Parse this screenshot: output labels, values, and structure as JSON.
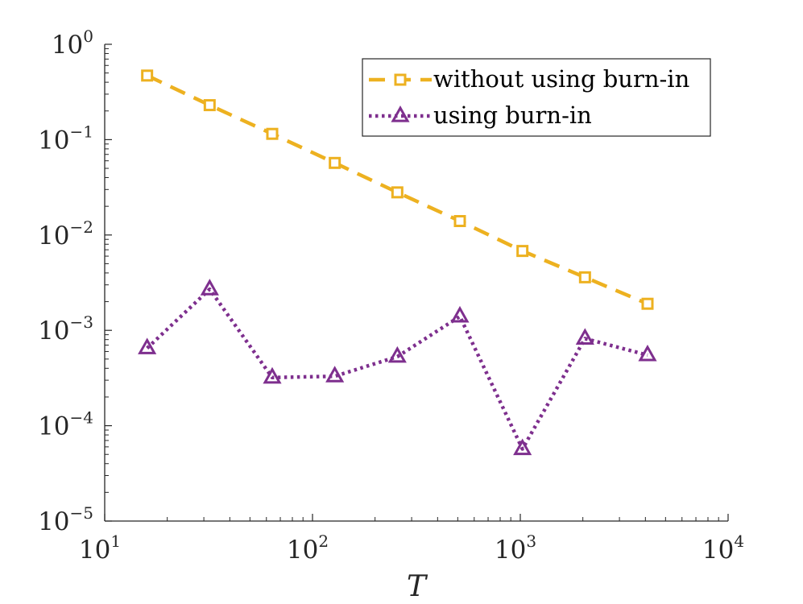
{
  "chart_data": {
    "type": "line",
    "xscale": "log",
    "yscale": "log",
    "xlim": [
      10,
      10000
    ],
    "ylim": [
      1e-05,
      1
    ],
    "xlabel": "T",
    "ylabel": "",
    "x_ticks": [
      {
        "base": "10",
        "exp": "1",
        "value": 10
      },
      {
        "base": "10",
        "exp": "2",
        "value": 100
      },
      {
        "base": "10",
        "exp": "3",
        "value": 1000
      },
      {
        "base": "10",
        "exp": "4",
        "value": 10000
      }
    ],
    "y_ticks": [
      {
        "base": "10",
        "exp": "0",
        "value": 1
      },
      {
        "base": "10",
        "exp": "−1",
        "value": 0.1
      },
      {
        "base": "10",
        "exp": "−2",
        "value": 0.01
      },
      {
        "base": "10",
        "exp": "−3",
        "value": 0.001
      },
      {
        "base": "10",
        "exp": "−4",
        "value": 0.0001
      },
      {
        "base": "10",
        "exp": "−5",
        "value": 1e-05
      }
    ],
    "x": [
      16,
      32,
      64,
      128,
      256,
      512,
      1024,
      2048,
      4096
    ],
    "legend_position": "top-right",
    "series": [
      {
        "name": "without using burn-in",
        "color": "#EDB120",
        "marker": "square",
        "line_style": "dashed",
        "values": [
          0.47,
          0.23,
          0.115,
          0.057,
          0.028,
          0.014,
          0.0068,
          0.0036,
          0.0019
        ]
      },
      {
        "name": "using burn-in",
        "color": "#7E2F8E",
        "marker": "triangle",
        "line_style": "dotted",
        "values": [
          0.00065,
          0.0027,
          0.00032,
          0.00033,
          0.00053,
          0.0014,
          5.7e-05,
          0.00082,
          0.00055
        ]
      }
    ]
  }
}
